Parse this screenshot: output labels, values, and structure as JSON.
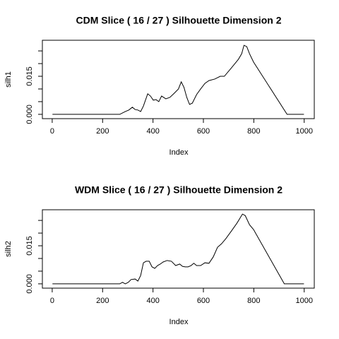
{
  "chart_data": [
    {
      "type": "line",
      "title": "CDM Slice ( 16 / 27 )  Silhouette Dimension 2",
      "xlabel": "Index",
      "ylabel": "silh1",
      "color": "#000000",
      "x": [
        1,
        268,
        290,
        304,
        318,
        329,
        340,
        351,
        362,
        379,
        390,
        401,
        412,
        423,
        434,
        451,
        467,
        484,
        501,
        512,
        523,
        534,
        545,
        556,
        573,
        589,
        606,
        622,
        645,
        667,
        683,
        711,
        739,
        752,
        761,
        772,
        783,
        799,
        932,
        999
      ],
      "values": [
        0,
        0,
        0.0011,
        0.0017,
        0.0028,
        0.0019,
        0.0017,
        0.0011,
        0.0033,
        0.0081,
        0.0072,
        0.0056,
        0.0058,
        0.005,
        0.0072,
        0.0061,
        0.0067,
        0.0083,
        0.01,
        0.0128,
        0.0106,
        0.0067,
        0.0039,
        0.0044,
        0.0078,
        0.01,
        0.0122,
        0.0133,
        0.0139,
        0.015,
        0.015,
        0.0183,
        0.0217,
        0.0239,
        0.0272,
        0.0267,
        0.0239,
        0.0206,
        0,
        0
      ],
      "xlim": [
        -39,
        1040
      ],
      "xticks": [
        0,
        200,
        400,
        600,
        800,
        1000
      ],
      "ylim": [
        -0.0017,
        0.0292
      ],
      "yticks": [
        {
          "value": 0,
          "label": "0.000"
        },
        {
          "value": 0.015,
          "label": "0.015"
        }
      ],
      "minor_yticks": [
        0.005,
        0.01,
        0.02,
        0.025
      ]
    },
    {
      "type": "line",
      "title": "WDM Slice ( 16 / 27 )  Silhouette Dimension 2",
      "xlabel": "Index",
      "ylabel": "silh2",
      "color": "#000000",
      "x": [
        1,
        268,
        279,
        290,
        302,
        313,
        329,
        340,
        351,
        362,
        373,
        385,
        396,
        407,
        418,
        429,
        440,
        456,
        473,
        490,
        506,
        517,
        528,
        539,
        551,
        562,
        573,
        589,
        606,
        622,
        639,
        656,
        672,
        689,
        711,
        733,
        755,
        766,
        783,
        799,
        921,
        999
      ],
      "values": [
        0,
        0,
        0.0006,
        0,
        0.0006,
        0.0017,
        0.0019,
        0.0011,
        0.0033,
        0.0083,
        0.0089,
        0.0089,
        0.0067,
        0.0061,
        0.0072,
        0.0078,
        0.0086,
        0.0092,
        0.0089,
        0.0072,
        0.0078,
        0.0069,
        0.0067,
        0.0067,
        0.0072,
        0.0081,
        0.0072,
        0.0072,
        0.0083,
        0.0081,
        0.0106,
        0.0144,
        0.0158,
        0.0178,
        0.0208,
        0.0239,
        0.0275,
        0.0269,
        0.0233,
        0.0214,
        0,
        0
      ],
      "xlim": [
        -39,
        1040
      ],
      "xticks": [
        0,
        200,
        400,
        600,
        800,
        1000
      ],
      "ylim": [
        -0.0017,
        0.0292
      ],
      "yticks": [
        {
          "value": 0,
          "label": "0.000"
        },
        {
          "value": 0.015,
          "label": "0.015"
        }
      ],
      "minor_yticks": [
        0.005,
        0.01,
        0.02,
        0.025
      ]
    }
  ]
}
